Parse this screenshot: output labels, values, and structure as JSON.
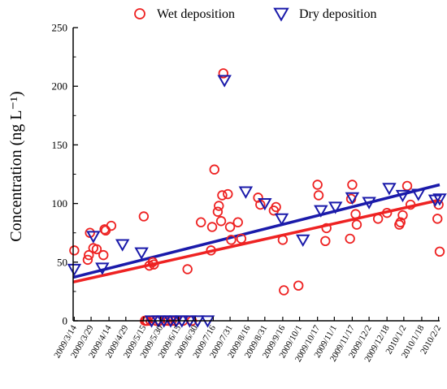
{
  "chart_data": {
    "type": "scatter",
    "title": "",
    "ylabel": "Concentration (ng L⁻¹)",
    "xlabel": "",
    "ylim": [
      0,
      250
    ],
    "yticks": [
      0,
      50,
      100,
      150,
      200,
      250
    ],
    "xlim": [
      "2009-03-13",
      "2010-02-03"
    ],
    "xticks": [
      "2009-03-14",
      "2009-03-29",
      "2009-04-14",
      "2009-04-29",
      "2009-05-15",
      "2009-05-30",
      "2009-06-15",
      "2009-06-30",
      "2009-07-16",
      "2009-07-31",
      "2009-08-16",
      "2009-08-31",
      "2009-09-16",
      "2009-10-01",
      "2009-10-17",
      "2009-11-01",
      "2009-11-17",
      "2009-12-02",
      "2009-12-18",
      "2010-01-02",
      "2010-01-18",
      "2010-02-02"
    ],
    "xtick_labels": [
      "2009/3/14",
      "2009/3/29",
      "2009/4/14",
      "2009/4/29",
      "2009/5/15",
      "2009/5/30",
      "2009/6/15",
      "2009/6/30",
      "2009/7/16",
      "2009/7/31",
      "2009/8/16",
      "2009/8/31",
      "2009/9/16",
      "2009/10/1",
      "2009/10/17",
      "2009/11/1",
      "2009/11/17",
      "2009/12/2",
      "2009/12/18",
      "2010/1/2",
      "2010/1/18",
      "2010/2/2"
    ],
    "grid": false,
    "legend_position": "top",
    "series": [
      {
        "name": "Wet deposition",
        "color": "#ee2222",
        "marker": "circle",
        "trend_line": [
          [
            "2009-03-13",
            33
          ],
          [
            "2010-02-03",
            103
          ]
        ],
        "points": [
          [
            "2009-03-14",
            60
          ],
          [
            "2009-03-26",
            52
          ],
          [
            "2009-03-27",
            56
          ],
          [
            "2009-03-28",
            75
          ],
          [
            "2009-03-31",
            62
          ],
          [
            "2009-04-03",
            61
          ],
          [
            "2009-04-09",
            56
          ],
          [
            "2009-04-10",
            78
          ],
          [
            "2009-04-11",
            77
          ],
          [
            "2009-04-16",
            81
          ],
          [
            "2009-05-15",
            89
          ],
          [
            "2009-05-16",
            0
          ],
          [
            "2009-05-17",
            0
          ],
          [
            "2009-05-18",
            0
          ],
          [
            "2009-05-20",
            47
          ],
          [
            "2009-05-21",
            0
          ],
          [
            "2009-05-23",
            50
          ],
          [
            "2009-05-24",
            48
          ],
          [
            "2009-05-26",
            0
          ],
          [
            "2009-05-29",
            0
          ],
          [
            "2009-06-03",
            0
          ],
          [
            "2009-06-06",
            0
          ],
          [
            "2009-06-09",
            0
          ],
          [
            "2009-06-12",
            0
          ],
          [
            "2009-06-19",
            0
          ],
          [
            "2009-06-23",
            44
          ],
          [
            "2009-06-27",
            0
          ],
          [
            "2009-07-05",
            84
          ],
          [
            "2009-07-14",
            60
          ],
          [
            "2009-07-15",
            80
          ],
          [
            "2009-07-17",
            129
          ],
          [
            "2009-07-20",
            93
          ],
          [
            "2009-07-21",
            98
          ],
          [
            "2009-07-23",
            85
          ],
          [
            "2009-07-24",
            107
          ],
          [
            "2009-07-25",
            211
          ],
          [
            "2009-07-29",
            108
          ],
          [
            "2009-07-31",
            80
          ],
          [
            "2009-08-01",
            69
          ],
          [
            "2009-08-07",
            84
          ],
          [
            "2009-08-10",
            70
          ],
          [
            "2009-08-25",
            105
          ],
          [
            "2009-08-27",
            99
          ],
          [
            "2009-09-08",
            94
          ],
          [
            "2009-09-10",
            97
          ],
          [
            "2009-09-16",
            69
          ],
          [
            "2009-09-17",
            26
          ],
          [
            "2009-09-30",
            30
          ],
          [
            "2009-10-17",
            116
          ],
          [
            "2009-10-18",
            107
          ],
          [
            "2009-10-24",
            68
          ],
          [
            "2009-10-25",
            79
          ],
          [
            "2009-11-15",
            70
          ],
          [
            "2009-11-16",
            104
          ],
          [
            "2009-11-17",
            116
          ],
          [
            "2009-11-20",
            91
          ],
          [
            "2009-11-21",
            82
          ],
          [
            "2009-12-10",
            87
          ],
          [
            "2009-12-18",
            92
          ],
          [
            "2009-12-29",
            82
          ],
          [
            "2009-12-30",
            84
          ],
          [
            "2010-01-01",
            90
          ],
          [
            "2010-01-05",
            115
          ],
          [
            "2010-01-08",
            99
          ],
          [
            "2010-02-01",
            87
          ],
          [
            "2010-02-02",
            99
          ],
          [
            "2010-02-03",
            59
          ]
        ]
      },
      {
        "name": "Dry deposition",
        "color": "#1a1aaa",
        "marker": "triangle-down",
        "trend_line": [
          [
            "2009-03-13",
            37
          ],
          [
            "2010-02-03",
            116
          ]
        ],
        "points": [
          [
            "2009-03-14",
            44
          ],
          [
            "2009-03-31",
            72
          ],
          [
            "2009-04-08",
            45
          ],
          [
            "2009-04-26",
            65
          ],
          [
            "2009-05-13",
            58
          ],
          [
            "2009-05-22",
            0
          ],
          [
            "2009-05-28",
            0
          ],
          [
            "2009-06-02",
            0
          ],
          [
            "2009-06-08",
            0
          ],
          [
            "2009-06-13",
            0
          ],
          [
            "2009-06-18",
            0
          ],
          [
            "2009-06-25",
            0
          ],
          [
            "2009-07-02",
            0
          ],
          [
            "2009-07-11",
            0
          ],
          [
            "2009-07-26",
            205
          ],
          [
            "2009-08-14",
            110
          ],
          [
            "2009-08-31",
            100
          ],
          [
            "2009-09-15",
            87
          ],
          [
            "2009-10-04",
            69
          ],
          [
            "2009-10-20",
            94
          ],
          [
            "2009-11-02",
            97
          ],
          [
            "2009-11-17",
            105
          ],
          [
            "2009-12-02",
            101
          ],
          [
            "2009-12-20",
            113
          ],
          [
            "2010-01-01",
            107
          ],
          [
            "2010-01-15",
            108
          ],
          [
            "2010-01-30",
            103
          ],
          [
            "2010-02-03",
            104
          ]
        ]
      }
    ]
  }
}
